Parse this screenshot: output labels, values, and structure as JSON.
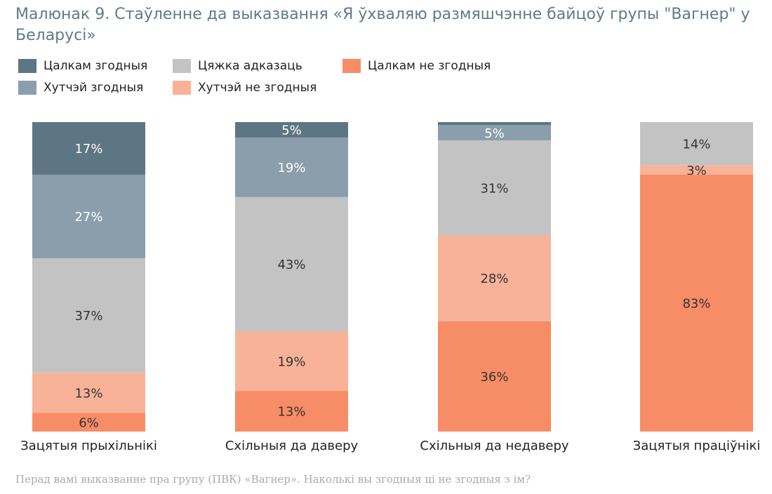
{
  "chart_data": {
    "type": "bar",
    "stacked": true,
    "percent": true,
    "title": "Малюнак 9. Стаўленне да выказвання «Я ўхваляю размяшчэнне байцоў групы \"Вагнер\" у Беларусі»",
    "categories": [
      "Зацятыя прыхільнікі",
      "Схільныя да даверу",
      "Схільныя да недаверу",
      "Зацятыя праціўнікі"
    ],
    "series": [
      {
        "name": "Цалкам згодныя",
        "color": "#5e7584",
        "values": [
          17,
          5,
          1,
          0
        ],
        "labels": [
          "17%",
          "5%",
          "",
          ""
        ]
      },
      {
        "name": "Хутчэй згодныя",
        "color": "#8a9fab",
        "values": [
          27,
          19,
          5,
          0
        ],
        "labels": [
          "27%",
          "19%",
          "5%",
          ""
        ]
      },
      {
        "name": "Цяжка адказаць",
        "color": "#c3c3c3",
        "values": [
          37,
          43,
          31,
          14
        ],
        "labels": [
          "37%",
          "43%",
          "31%",
          "14%"
        ]
      },
      {
        "name": "Хутчэй не згодныя",
        "color": "#f8b298",
        "values": [
          13,
          19,
          28,
          3
        ],
        "labels": [
          "13%",
          "19%",
          "28%",
          "3%"
        ]
      },
      {
        "name": "Цалкам не згодныя",
        "color": "#f78d66",
        "values": [
          6,
          13,
          36,
          83
        ],
        "labels": [
          "6%",
          "13%",
          "36%",
          "83%"
        ]
      }
    ],
    "legend_position": "top-left",
    "grid": false
  },
  "note": "Перад вамі выказванне пра групу (ПВК) «Вагнер». Наколькі вы згодныя ці не згодныя з ім?"
}
